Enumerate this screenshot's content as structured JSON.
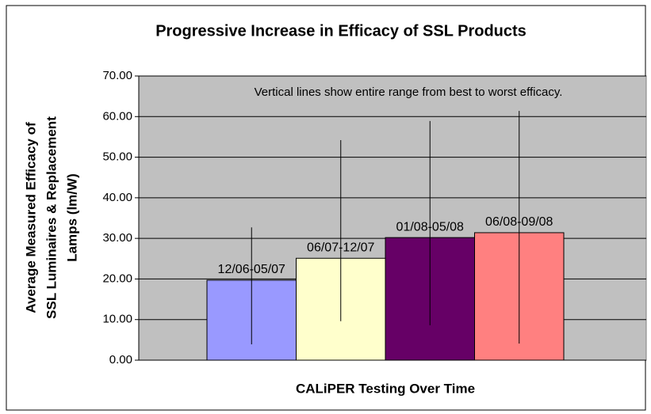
{
  "chart_data": {
    "type": "bar",
    "title": "Progressive Increase in Efficacy of SSL Products",
    "xlabel": "CALiPER Testing Over Time",
    "ylabel": [
      "Average Measured Efficacy of",
      "SSL Luminaires & Replacement",
      "Lamps (lm/W)"
    ],
    "annotation": "Vertical lines show entire range from best to worst efficacy.",
    "categories": [
      "12/06-05/07",
      "06/07-12/07",
      "01/08-05/08",
      "06/08-09/08"
    ],
    "values": [
      19.7,
      25.1,
      30.2,
      31.4
    ],
    "low": [
      3.9,
      9.6,
      8.6,
      4.1
    ],
    "high": [
      32.7,
      54.2,
      58.9,
      61.4
    ],
    "colors": [
      "#9999ff",
      "#ffffcc",
      "#660066",
      "#ff8080"
    ],
    "ylim": [
      0,
      70
    ],
    "yticks": [
      {
        "value": 0,
        "label": "0.00"
      },
      {
        "value": 10,
        "label": "10.00"
      },
      {
        "value": 20,
        "label": "20.00"
      },
      {
        "value": 30,
        "label": "30.00"
      },
      {
        "value": 40,
        "label": "40.00"
      },
      {
        "value": 50,
        "label": "50.00"
      },
      {
        "value": 60,
        "label": "60.00"
      },
      {
        "value": 70,
        "label": "70.00"
      }
    ],
    "grid": true
  }
}
